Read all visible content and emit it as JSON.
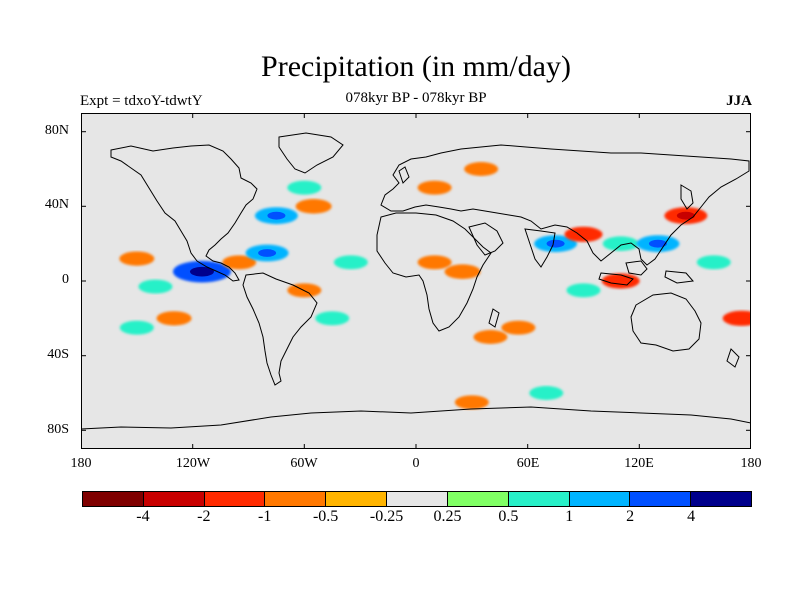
{
  "title": "Precipitation (in mm/day)",
  "subtitle": "078kyr BP - 078kyr BP",
  "experiment": "Expt = tdxoY-tdwtY",
  "season": "JJA",
  "y_ticks": [
    "80N",
    "40N",
    "0",
    "40S",
    "80S"
  ],
  "x_ticks": [
    "180",
    "120W",
    "60W",
    "0",
    "60E",
    "120E",
    "180"
  ],
  "colorbar": {
    "colors": [
      "#7f0000",
      "#c80000",
      "#ff2a00",
      "#ff7800",
      "#ffb400",
      "#e6e6e6",
      "#80ff64",
      "#28f0c8",
      "#00b4ff",
      "#0050ff",
      "#00008c"
    ],
    "labels": [
      "-4",
      "-2",
      "-1",
      "-0.5",
      "-0.25",
      "0.25",
      "0.5",
      "1",
      "2",
      "4"
    ]
  },
  "chart_data": {
    "type": "heatmap",
    "variable": "Precipitation anomaly",
    "units": "mm/day",
    "projection": "cylindrical equidistant",
    "lon_range": [
      -180,
      180
    ],
    "lat_range": [
      -90,
      90
    ],
    "background_color": "#e6e6e6",
    "levels": [
      -4,
      -2,
      -1,
      -0.5,
      -0.25,
      0.25,
      0.5,
      1,
      2,
      4
    ],
    "anomaly_regions": [
      {
        "lon": -115,
        "lat": 5,
        "value": 3
      },
      {
        "lon": -95,
        "lat": 10,
        "value": -0.6
      },
      {
        "lon": -150,
        "lat": 12,
        "value": -0.7
      },
      {
        "lon": -140,
        "lat": -3,
        "value": 0.6
      },
      {
        "lon": -130,
        "lat": -20,
        "value": -0.7
      },
      {
        "lon": -150,
        "lat": -25,
        "value": 0.6
      },
      {
        "lon": -60,
        "lat": 50,
        "value": 0.6
      },
      {
        "lon": -75,
        "lat": 35,
        "value": 1.5
      },
      {
        "lon": -55,
        "lat": 40,
        "value": -0.8
      },
      {
        "lon": -80,
        "lat": 15,
        "value": 1.5
      },
      {
        "lon": -60,
        "lat": -5,
        "value": -0.6
      },
      {
        "lon": -35,
        "lat": 10,
        "value": 0.6
      },
      {
        "lon": -45,
        "lat": -20,
        "value": 0.6
      },
      {
        "lon": 10,
        "lat": 50,
        "value": -0.6
      },
      {
        "lon": 35,
        "lat": 60,
        "value": -0.6
      },
      {
        "lon": 10,
        "lat": 10,
        "value": -0.6
      },
      {
        "lon": 25,
        "lat": 5,
        "value": -0.8
      },
      {
        "lon": 40,
        "lat": -30,
        "value": -0.6
      },
      {
        "lon": 75,
        "lat": 20,
        "value": 1.5
      },
      {
        "lon": 90,
        "lat": 25,
        "value": -1.0
      },
      {
        "lon": 110,
        "lat": 20,
        "value": 0.8
      },
      {
        "lon": 130,
        "lat": 20,
        "value": 1.5
      },
      {
        "lon": 145,
        "lat": 35,
        "value": -1.5
      },
      {
        "lon": 160,
        "lat": 10,
        "value": 0.6
      },
      {
        "lon": 110,
        "lat": 0,
        "value": -1.0
      },
      {
        "lon": 90,
        "lat": -5,
        "value": 0.6
      },
      {
        "lon": 55,
        "lat": -25,
        "value": -0.6
      },
      {
        "lon": 175,
        "lat": -20,
        "value": -1.0
      },
      {
        "lon": 30,
        "lat": -65,
        "value": -0.6
      },
      {
        "lon": 70,
        "lat": -60,
        "value": 0.6
      }
    ]
  }
}
